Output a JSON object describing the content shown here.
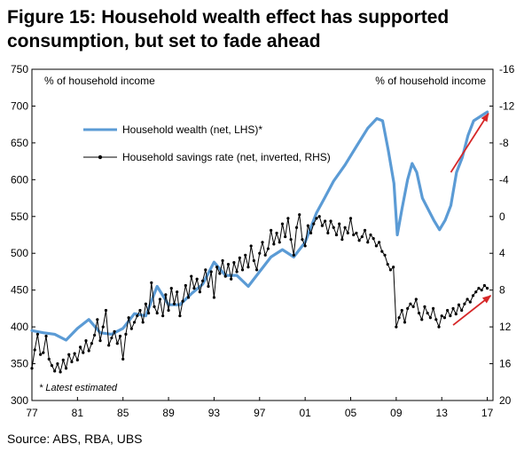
{
  "title": "Figure 15: Household wealth effect has supported consumption, but set to fade ahead",
  "source": "Source: ABS, RBA, UBS",
  "colors": {
    "wealth": "#5b9bd5",
    "savings": "#000000",
    "arrow": "#d62728"
  },
  "chart_data": {
    "type": "line",
    "left_axis_label": "% of household income",
    "right_axis_label": "% of household income",
    "note": "* Latest estimated",
    "x_ticks": [
      "77",
      "81",
      "85",
      "89",
      "93",
      "97",
      "01",
      "05",
      "09",
      "13",
      "17"
    ],
    "x_range": [
      1977,
      2017.5
    ],
    "ylim_left": [
      300,
      750
    ],
    "yticks_left": [
      "300",
      "350",
      "400",
      "450",
      "500",
      "550",
      "600",
      "650",
      "700",
      "750"
    ],
    "ylim_right": [
      20,
      -16
    ],
    "yticks_right": [
      "20",
      "16",
      "12",
      "8",
      "4",
      "0",
      "-4",
      "-8",
      "-12",
      "-16"
    ],
    "right_axis_inverted": true,
    "grid": false,
    "legend_position": "top-left",
    "series": [
      {
        "name": "Household wealth (net, LHS)*",
        "axis": "left",
        "color": "#5b9bd5",
        "points": [
          [
            1977.0,
            395
          ],
          [
            1978.0,
            392
          ],
          [
            1979.0,
            390
          ],
          [
            1980.0,
            382
          ],
          [
            1981.0,
            398
          ],
          [
            1982.0,
            410
          ],
          [
            1983.0,
            392
          ],
          [
            1984.0,
            390
          ],
          [
            1985.0,
            398
          ],
          [
            1986.0,
            418
          ],
          [
            1987.0,
            415
          ],
          [
            1988.0,
            455
          ],
          [
            1989.0,
            430
          ],
          [
            1990.0,
            430
          ],
          [
            1991.0,
            445
          ],
          [
            1992.0,
            458
          ],
          [
            1993.0,
            488
          ],
          [
            1994.0,
            470
          ],
          [
            1995.0,
            470
          ],
          [
            1996.0,
            455
          ],
          [
            1997.0,
            475
          ],
          [
            1998.0,
            495
          ],
          [
            1999.0,
            505
          ],
          [
            2000.0,
            495
          ],
          [
            2001.0,
            515
          ],
          [
            2002.0,
            555
          ],
          [
            2002.7,
            575
          ],
          [
            2003.5,
            598
          ],
          [
            2004.5,
            620
          ],
          [
            2005.5,
            645
          ],
          [
            2006.5,
            670
          ],
          [
            2007.3,
            683
          ],
          [
            2007.8,
            680
          ],
          [
            2008.3,
            640
          ],
          [
            2008.8,
            595
          ],
          [
            2009.1,
            525
          ],
          [
            2009.5,
            560
          ],
          [
            2010.0,
            600
          ],
          [
            2010.4,
            622
          ],
          [
            2010.8,
            610
          ],
          [
            2011.3,
            575
          ],
          [
            2011.8,
            560
          ],
          [
            2012.3,
            545
          ],
          [
            2012.8,
            532
          ],
          [
            2013.3,
            545
          ],
          [
            2013.8,
            565
          ],
          [
            2014.3,
            610
          ],
          [
            2014.8,
            630
          ],
          [
            2015.3,
            660
          ],
          [
            2015.8,
            680
          ],
          [
            2016.3,
            685
          ],
          [
            2016.8,
            690
          ],
          [
            2017.0,
            692
          ]
        ]
      },
      {
        "name": "Household savings rate (net, inverted, RHS)",
        "axis": "right",
        "color": "#000000",
        "points": [
          [
            1977.0,
            16.5
          ],
          [
            1977.25,
            14.5
          ],
          [
            1977.5,
            12.8
          ],
          [
            1977.75,
            15.0
          ],
          [
            1978.0,
            14.8
          ],
          [
            1978.25,
            13.0
          ],
          [
            1978.5,
            15.5
          ],
          [
            1978.75,
            16.2
          ],
          [
            1979.0,
            16.8
          ],
          [
            1979.25,
            16.0
          ],
          [
            1979.5,
            16.9
          ],
          [
            1979.75,
            15.6
          ],
          [
            1980.0,
            16.5
          ],
          [
            1980.25,
            15.0
          ],
          [
            1980.5,
            15.8
          ],
          [
            1980.75,
            14.9
          ],
          [
            1981.0,
            15.6
          ],
          [
            1981.25,
            14.2
          ],
          [
            1981.5,
            14.8
          ],
          [
            1981.75,
            13.5
          ],
          [
            1982.0,
            14.6
          ],
          [
            1982.25,
            13.8
          ],
          [
            1982.5,
            12.9
          ],
          [
            1982.75,
            11.2
          ],
          [
            1983.0,
            13.5
          ],
          [
            1983.25,
            12.0
          ],
          [
            1983.5,
            10.2
          ],
          [
            1983.75,
            14.0
          ],
          [
            1984.0,
            13.2
          ],
          [
            1984.25,
            12.5
          ],
          [
            1984.5,
            13.8
          ],
          [
            1984.75,
            13.0
          ],
          [
            1985.0,
            15.5
          ],
          [
            1985.25,
            12.8
          ],
          [
            1985.5,
            11.0
          ],
          [
            1985.75,
            12.2
          ],
          [
            1986.0,
            11.5
          ],
          [
            1986.25,
            10.8
          ],
          [
            1986.5,
            10.2
          ],
          [
            1986.75,
            11.5
          ],
          [
            1987.0,
            9.5
          ],
          [
            1987.25,
            10.5
          ],
          [
            1987.5,
            7.2
          ],
          [
            1987.75,
            9.8
          ],
          [
            1988.0,
            10.5
          ],
          [
            1988.25,
            9.0
          ],
          [
            1988.5,
            10.8
          ],
          [
            1988.75,
            8.5
          ],
          [
            1989.0,
            10.2
          ],
          [
            1989.25,
            7.8
          ],
          [
            1989.5,
            9.5
          ],
          [
            1989.75,
            8.2
          ],
          [
            1990.0,
            10.8
          ],
          [
            1990.25,
            9.2
          ],
          [
            1990.5,
            7.5
          ],
          [
            1990.75,
            8.8
          ],
          [
            1991.0,
            6.5
          ],
          [
            1991.25,
            7.8
          ],
          [
            1991.5,
            6.8
          ],
          [
            1991.75,
            8.2
          ],
          [
            1992.0,
            7.0
          ],
          [
            1992.25,
            5.8
          ],
          [
            1992.5,
            7.6
          ],
          [
            1992.75,
            6.0
          ],
          [
            1993.0,
            8.8
          ],
          [
            1993.25,
            5.5
          ],
          [
            1993.5,
            6.2
          ],
          [
            1993.75,
            4.8
          ],
          [
            1994.0,
            6.5
          ],
          [
            1994.25,
            5.2
          ],
          [
            1994.5,
            6.8
          ],
          [
            1994.75,
            5.0
          ],
          [
            1995.0,
            6.0
          ],
          [
            1995.25,
            4.5
          ],
          [
            1995.5,
            5.8
          ],
          [
            1995.75,
            4.2
          ],
          [
            1996.0,
            5.5
          ],
          [
            1996.25,
            3.2
          ],
          [
            1996.5,
            4.8
          ],
          [
            1996.75,
            5.8
          ],
          [
            1997.0,
            4.0
          ],
          [
            1997.25,
            2.8
          ],
          [
            1997.5,
            4.2
          ],
          [
            1997.75,
            3.5
          ],
          [
            1998.0,
            1.5
          ],
          [
            1998.25,
            3.0
          ],
          [
            1998.5,
            1.8
          ],
          [
            1998.75,
            2.8
          ],
          [
            1999.0,
            0.8
          ],
          [
            1999.25,
            2.2
          ],
          [
            1999.5,
            0.2
          ],
          [
            1999.75,
            2.5
          ],
          [
            2000.0,
            4.2
          ],
          [
            2000.25,
            1.2
          ],
          [
            2000.5,
            -0.2
          ],
          [
            2000.75,
            2.5
          ],
          [
            2001.0,
            3.2
          ],
          [
            2001.25,
            1.0
          ],
          [
            2001.5,
            1.8
          ],
          [
            2001.75,
            0.8
          ],
          [
            2002.0,
            0.2
          ],
          [
            2002.25,
            0.0
          ],
          [
            2002.5,
            1.0
          ],
          [
            2002.75,
            0.5
          ],
          [
            2003.0,
            1.8
          ],
          [
            2003.25,
            0.5
          ],
          [
            2003.5,
            1.2
          ],
          [
            2003.75,
            2.0
          ],
          [
            2004.0,
            0.8
          ],
          [
            2004.25,
            2.5
          ],
          [
            2004.5,
            1.2
          ],
          [
            2004.75,
            1.8
          ],
          [
            2005.0,
            0.2
          ],
          [
            2005.25,
            2.0
          ],
          [
            2005.5,
            1.8
          ],
          [
            2005.75,
            2.6
          ],
          [
            2006.0,
            2.2
          ],
          [
            2006.25,
            1.5
          ],
          [
            2006.5,
            2.8
          ],
          [
            2006.75,
            2.0
          ],
          [
            2007.0,
            2.4
          ],
          [
            2007.25,
            3.2
          ],
          [
            2007.5,
            2.8
          ],
          [
            2007.75,
            3.8
          ],
          [
            2008.0,
            4.2
          ],
          [
            2008.25,
            5.2
          ],
          [
            2008.5,
            5.8
          ],
          [
            2008.75,
            5.5
          ],
          [
            2009.0,
            12.0
          ],
          [
            2009.25,
            11.0
          ],
          [
            2009.5,
            10.2
          ],
          [
            2009.75,
            11.5
          ],
          [
            2010.0,
            10.0
          ],
          [
            2010.25,
            9.5
          ],
          [
            2010.5,
            9.8
          ],
          [
            2010.75,
            9.0
          ],
          [
            2011.0,
            10.5
          ],
          [
            2011.25,
            11.2
          ],
          [
            2011.5,
            9.8
          ],
          [
            2011.75,
            10.5
          ],
          [
            2012.0,
            11.0
          ],
          [
            2012.25,
            10.0
          ],
          [
            2012.5,
            11.2
          ],
          [
            2012.75,
            12.0
          ],
          [
            2013.0,
            10.8
          ],
          [
            2013.25,
            11.0
          ],
          [
            2013.5,
            10.2
          ],
          [
            2013.75,
            10.8
          ],
          [
            2014.0,
            10.0
          ],
          [
            2014.25,
            10.6
          ],
          [
            2014.5,
            9.6
          ],
          [
            2014.75,
            10.2
          ],
          [
            2015.0,
            9.5
          ],
          [
            2015.25,
            9.0
          ],
          [
            2015.5,
            9.3
          ],
          [
            2015.75,
            8.6
          ],
          [
            2016.0,
            8.2
          ],
          [
            2016.25,
            7.8
          ],
          [
            2016.5,
            8.0
          ],
          [
            2016.75,
            7.5
          ],
          [
            2017.0,
            7.8
          ]
        ]
      }
    ],
    "trend_arrows": [
      {
        "from": [
          2013.8,
          610
        ],
        "to": [
          2017.1,
          690
        ],
        "axis": "left"
      },
      {
        "from": [
          2014.0,
          11.8
        ],
        "to": [
          2017.3,
          8.6
        ],
        "axis": "right"
      }
    ]
  }
}
